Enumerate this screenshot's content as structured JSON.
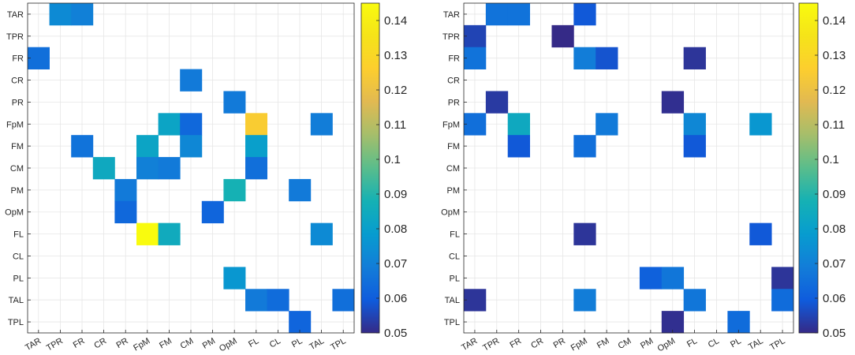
{
  "chart_data": [
    {
      "type": "heatmap",
      "title": "",
      "xlabel": "",
      "ylabel": "",
      "categories": [
        "TAR",
        "TPR",
        "FR",
        "CR",
        "PR",
        "FpM",
        "FM",
        "CM",
        "PM",
        "OpM",
        "FL",
        "CL",
        "PL",
        "TAL",
        "TPL"
      ],
      "cells": [
        {
          "row": "TAR",
          "col": "TPR",
          "value": 0.073
        },
        {
          "row": "TAR",
          "col": "FR",
          "value": 0.07
        },
        {
          "row": "FR",
          "col": "TAR",
          "value": 0.065
        },
        {
          "row": "CR",
          "col": "CM",
          "value": 0.068
        },
        {
          "row": "PR",
          "col": "OpM",
          "value": 0.068
        },
        {
          "row": "FpM",
          "col": "FM",
          "value": 0.082
        },
        {
          "row": "FpM",
          "col": "CM",
          "value": 0.063
        },
        {
          "row": "FpM",
          "col": "FL",
          "value": 0.125
        },
        {
          "row": "FpM",
          "col": "TAL",
          "value": 0.069
        },
        {
          "row": "FM",
          "col": "FR",
          "value": 0.066
        },
        {
          "row": "FM",
          "col": "FpM",
          "value": 0.082
        },
        {
          "row": "FM",
          "col": "CM",
          "value": 0.072
        },
        {
          "row": "FM",
          "col": "FL",
          "value": 0.08
        },
        {
          "row": "CM",
          "col": "CR",
          "value": 0.084
        },
        {
          "row": "CM",
          "col": "FpM",
          "value": 0.07
        },
        {
          "row": "CM",
          "col": "FM",
          "value": 0.068
        },
        {
          "row": "CM",
          "col": "FL",
          "value": 0.065
        },
        {
          "row": "PM",
          "col": "PR",
          "value": 0.068
        },
        {
          "row": "PM",
          "col": "OpM",
          "value": 0.088
        },
        {
          "row": "PM",
          "col": "PL",
          "value": 0.068
        },
        {
          "row": "OpM",
          "col": "PR",
          "value": 0.063
        },
        {
          "row": "OpM",
          "col": "PM",
          "value": 0.062
        },
        {
          "row": "FL",
          "col": "FpM",
          "value": 0.145
        },
        {
          "row": "FL",
          "col": "FM",
          "value": 0.085
        },
        {
          "row": "FL",
          "col": "TAL",
          "value": 0.073
        },
        {
          "row": "PL",
          "col": "OpM",
          "value": 0.077
        },
        {
          "row": "TAL",
          "col": "FL",
          "value": 0.068
        },
        {
          "row": "TAL",
          "col": "CL",
          "value": 0.064
        },
        {
          "row": "TAL",
          "col": "TPL",
          "value": 0.065
        },
        {
          "row": "TPL",
          "col": "PL",
          "value": 0.062
        }
      ],
      "colorbar": {
        "min": 0.05,
        "max": 0.145,
        "ticks": [
          "0.05",
          "0.06",
          "0.07",
          "0.08",
          "0.09",
          "0.1",
          "0.11",
          "0.12",
          "0.13",
          "0.14"
        ]
      },
      "grid": true
    },
    {
      "type": "heatmap",
      "title": "",
      "xlabel": "",
      "ylabel": "",
      "categories": [
        "TAR",
        "TPR",
        "FR",
        "CR",
        "PR",
        "FpM",
        "FM",
        "CM",
        "PM",
        "OpM",
        "FL",
        "CL",
        "PL",
        "TAL",
        "TPL"
      ],
      "cells": [
        {
          "row": "TAR",
          "col": "TPR",
          "value": 0.066
        },
        {
          "row": "TAR",
          "col": "FR",
          "value": 0.066
        },
        {
          "row": "TAR",
          "col": "FpM",
          "value": 0.059
        },
        {
          "row": "TPR",
          "col": "TAR",
          "value": 0.055
        },
        {
          "row": "TPR",
          "col": "PR",
          "value": 0.05
        },
        {
          "row": "FR",
          "col": "TAR",
          "value": 0.066
        },
        {
          "row": "FR",
          "col": "FpM",
          "value": 0.069
        },
        {
          "row": "FR",
          "col": "FM",
          "value": 0.058
        },
        {
          "row": "FR",
          "col": "FL",
          "value": 0.052
        },
        {
          "row": "PR",
          "col": "TPR",
          "value": 0.053
        },
        {
          "row": "PR",
          "col": "OpM",
          "value": 0.051
        },
        {
          "row": "FpM",
          "col": "TAR",
          "value": 0.065
        },
        {
          "row": "FpM",
          "col": "FR",
          "value": 0.084
        },
        {
          "row": "FpM",
          "col": "FM",
          "value": 0.068
        },
        {
          "row": "FpM",
          "col": "FL",
          "value": 0.072
        },
        {
          "row": "FpM",
          "col": "TAL",
          "value": 0.077
        },
        {
          "row": "FM",
          "col": "FR",
          "value": 0.059
        },
        {
          "row": "FM",
          "col": "FpM",
          "value": 0.065
        },
        {
          "row": "FM",
          "col": "FL",
          "value": 0.059
        },
        {
          "row": "FL",
          "col": "FpM",
          "value": 0.052
        },
        {
          "row": "FL",
          "col": "TAL",
          "value": 0.059
        },
        {
          "row": "PL",
          "col": "PM",
          "value": 0.061
        },
        {
          "row": "PL",
          "col": "OpM",
          "value": 0.067
        },
        {
          "row": "PL",
          "col": "TPL",
          "value": 0.052
        },
        {
          "row": "TAL",
          "col": "TAR",
          "value": 0.052
        },
        {
          "row": "TAL",
          "col": "FpM",
          "value": 0.069
        },
        {
          "row": "TAL",
          "col": "FL",
          "value": 0.067
        },
        {
          "row": "TAL",
          "col": "TPL",
          "value": 0.064
        },
        {
          "row": "TPL",
          "col": "OpM",
          "value": 0.051
        },
        {
          "row": "TPL",
          "col": "PL",
          "value": 0.064
        }
      ],
      "colorbar": {
        "min": 0.05,
        "max": 0.145,
        "ticks": [
          "0.05",
          "0.06",
          "0.07",
          "0.08",
          "0.09",
          "0.1",
          "0.11",
          "0.12",
          "0.13",
          "0.14"
        ]
      },
      "grid": true
    }
  ]
}
